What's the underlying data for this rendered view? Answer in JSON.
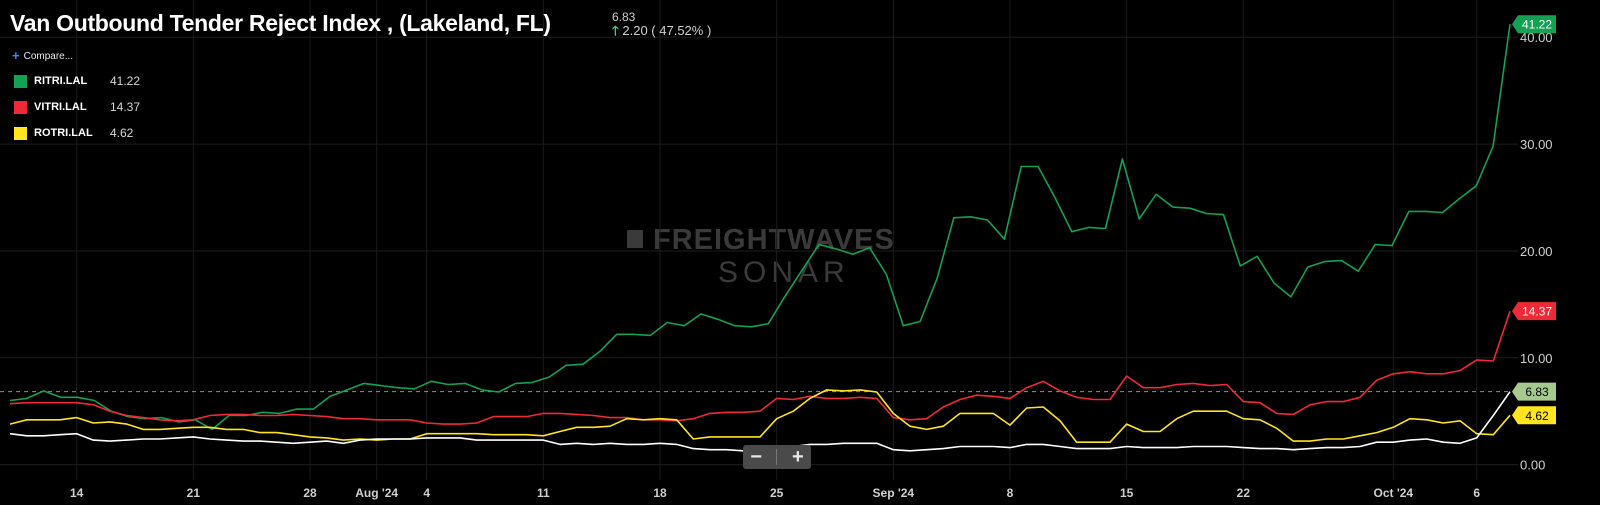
{
  "header": {
    "title": "Van Outbound Tender Reject Index , (Lakeland, FL)",
    "current_value": "6.83",
    "change": "2.20 ( 47.52% )",
    "compare_label": "Compare..."
  },
  "legend": [
    {
      "name": "RITRI.LAL",
      "value": "41.22",
      "color": "#13a152"
    },
    {
      "name": "VITRI.LAL",
      "value": "14.37",
      "color": "#ee2a36"
    },
    {
      "name": "ROTRI.LAL",
      "value": "4.62",
      "color": "#ffe51f"
    }
  ],
  "watermark": {
    "line1": "FREIGHTWAVES",
    "line2": "SONAR"
  },
  "zoom": {
    "minus": "−",
    "plus": "+"
  },
  "chart_data": {
    "type": "line",
    "x_start": "2024-07-10",
    "x_end": "2024-10-08",
    "x_ticks": [
      {
        "date": "2024-07-14",
        "label": "14"
      },
      {
        "date": "2024-07-21",
        "label": "21"
      },
      {
        "date": "2024-07-28",
        "label": "28"
      },
      {
        "date": "2024-08-01",
        "label": "Aug '24"
      },
      {
        "date": "2024-08-04",
        "label": "4"
      },
      {
        "date": "2024-08-11",
        "label": "11"
      },
      {
        "date": "2024-08-18",
        "label": "18"
      },
      {
        "date": "2024-08-25",
        "label": "25"
      },
      {
        "date": "2024-09-01",
        "label": "Sep '24"
      },
      {
        "date": "2024-09-08",
        "label": "8"
      },
      {
        "date": "2024-09-15",
        "label": "15"
      },
      {
        "date": "2024-09-22",
        "label": "22"
      },
      {
        "date": "2024-10-01",
        "label": "Oct '24"
      },
      {
        "date": "2024-10-06",
        "label": "6"
      }
    ],
    "y_ticks": [
      "0.00",
      "10.00",
      "20.00",
      "30.00",
      "40.00"
    ],
    "ylim": [
      -0.5,
      41.8
    ],
    "reference_line": 6.83,
    "series": [
      {
        "name": "RITRI.LAL",
        "color": "#13a152",
        "last_label": "41.22",
        "values": [
          6.0,
          6.2,
          6.9,
          6.3,
          6.3,
          6.0,
          5.0,
          4.5,
          4.3,
          4.4,
          4.0,
          4.2,
          3.3,
          4.6,
          4.6,
          4.9,
          4.8,
          5.2,
          5.2,
          6.4,
          7.0,
          7.6,
          7.4,
          7.2,
          7.1,
          7.8,
          7.5,
          7.6,
          7.0,
          6.8,
          7.6,
          7.7,
          8.2,
          9.3,
          9.4,
          10.6,
          12.2,
          12.2,
          12.1,
          13.3,
          13.0,
          14.1,
          13.6,
          13.0,
          12.9,
          13.2,
          15.8,
          18.2,
          20.6,
          20.2,
          19.7,
          20.3,
          17.8,
          13.0,
          13.4,
          17.4,
          23.1,
          23.2,
          22.9,
          21.1,
          27.9,
          27.9,
          25.0,
          21.8,
          22.2,
          22.1,
          28.6,
          23.0,
          25.3,
          24.1,
          24.0,
          23.5,
          23.4,
          18.6,
          19.5,
          17.0,
          15.7,
          18.5,
          19.0,
          19.1,
          18.1,
          20.6,
          20.5,
          23.7,
          23.7,
          23.6,
          24.9,
          26.1,
          29.8,
          41.22
        ]
      },
      {
        "name": "VITRI.LAL",
        "color": "#ee2a36",
        "last_label": "14.37",
        "values": [
          5.7,
          5.8,
          5.8,
          5.8,
          5.8,
          5.6,
          5.0,
          4.6,
          4.4,
          4.2,
          4.1,
          4.2,
          4.6,
          4.7,
          4.7,
          4.6,
          4.6,
          4.7,
          4.6,
          4.5,
          4.3,
          4.3,
          4.2,
          4.2,
          4.2,
          3.9,
          3.8,
          3.8,
          3.9,
          4.5,
          4.5,
          4.5,
          4.8,
          4.8,
          4.7,
          4.6,
          4.4,
          4.4,
          4.2,
          4.2,
          4.1,
          4.3,
          4.8,
          4.9,
          4.9,
          5.0,
          6.2,
          6.1,
          6.4,
          6.2,
          6.2,
          6.3,
          6.2,
          4.4,
          4.2,
          4.3,
          5.4,
          6.1,
          6.5,
          6.4,
          6.2,
          7.2,
          7.8,
          6.9,
          6.3,
          6.1,
          6.1,
          8.3,
          7.2,
          7.2,
          7.5,
          7.6,
          7.4,
          7.5,
          5.9,
          5.8,
          4.8,
          4.7,
          5.6,
          5.9,
          5.9,
          6.3,
          7.9,
          8.5,
          8.7,
          8.5,
          8.5,
          8.8,
          9.8,
          9.7,
          14.37
        ]
      },
      {
        "name": "ROTRI.LAL",
        "color": "#ffe51f",
        "last_label": "4.62",
        "values": [
          3.8,
          4.2,
          4.2,
          4.2,
          4.4,
          3.9,
          4.0,
          3.8,
          3.3,
          3.3,
          3.4,
          3.5,
          3.5,
          3.3,
          3.3,
          3.0,
          3.0,
          2.8,
          2.6,
          2.5,
          2.3,
          2.4,
          2.3,
          2.4,
          2.4,
          2.9,
          2.9,
          2.9,
          2.9,
          2.8,
          2.8,
          2.8,
          2.7,
          3.1,
          3.5,
          3.5,
          3.6,
          4.3,
          4.2,
          4.3,
          4.2,
          2.4,
          2.6,
          2.6,
          2.6,
          2.6,
          4.3,
          5.0,
          6.2,
          7.0,
          6.9,
          7.0,
          6.8,
          4.8,
          3.6,
          3.3,
          3.6,
          4.8,
          4.8,
          4.8,
          3.7,
          5.3,
          5.4,
          4.1,
          2.1,
          2.1,
          2.1,
          3.8,
          3.1,
          3.1,
          4.3,
          5.0,
          5.0,
          5.0,
          4.3,
          4.2,
          3.4,
          2.2,
          2.2,
          2.4,
          2.4,
          2.7,
          3.0,
          3.5,
          4.3,
          4.2,
          3.9,
          4.1,
          2.9,
          2.8,
          4.62
        ]
      },
      {
        "name": "",
        "color": "#ffffff",
        "last_label": "6.83",
        "values": [
          2.9,
          2.7,
          2.7,
          2.8,
          2.9,
          2.3,
          2.2,
          2.3,
          2.4,
          2.4,
          2.5,
          2.6,
          2.4,
          2.3,
          2.2,
          2.2,
          2.1,
          2.0,
          2.1,
          2.2,
          2.0,
          2.3,
          2.4,
          2.4,
          2.4,
          2.5,
          2.5,
          2.5,
          2.3,
          2.3,
          2.3,
          2.3,
          2.3,
          1.9,
          2.0,
          1.9,
          2.0,
          1.9,
          1.9,
          2.0,
          1.9,
          1.5,
          1.4,
          1.4,
          1.3,
          1.3,
          1.5,
          1.7,
          1.9,
          1.9,
          2.0,
          2.0,
          2.0,
          1.4,
          1.3,
          1.4,
          1.5,
          1.7,
          1.7,
          1.7,
          1.6,
          1.9,
          1.9,
          1.7,
          1.5,
          1.5,
          1.5,
          1.7,
          1.6,
          1.6,
          1.6,
          1.7,
          1.7,
          1.7,
          1.6,
          1.5,
          1.5,
          1.4,
          1.5,
          1.6,
          1.6,
          1.7,
          2.1,
          2.1,
          2.3,
          2.4,
          2.1,
          2.0,
          2.5,
          4.6,
          6.83
        ]
      }
    ]
  }
}
